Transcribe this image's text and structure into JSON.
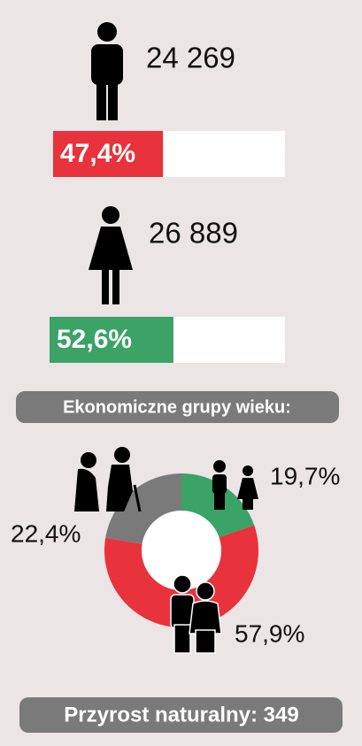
{
  "men": {
    "count": "24 269",
    "values": [
      47.4
    ],
    "value_labels": [
      "47,4%"
    ],
    "color": "#e8323c",
    "xlim": [
      0,
      100
    ]
  },
  "women": {
    "count": "26 889",
    "values": [
      52.6
    ],
    "value_labels": [
      "52,6%"
    ],
    "color": "#3aa365",
    "xlim": [
      0,
      100
    ]
  },
  "age_groups": {
    "type": "pie",
    "title": "Ekonomiczne grupy wieku:",
    "values": [
      19.7,
      57.9,
      22.4
    ],
    "value_labels": [
      "19,7%",
      "57,9%",
      "22,4%"
    ],
    "colors": [
      "#3aa365",
      "#e8323c",
      "#7a7a7a"
    ]
  },
  "footer": "Przyrost naturalny: 349"
}
